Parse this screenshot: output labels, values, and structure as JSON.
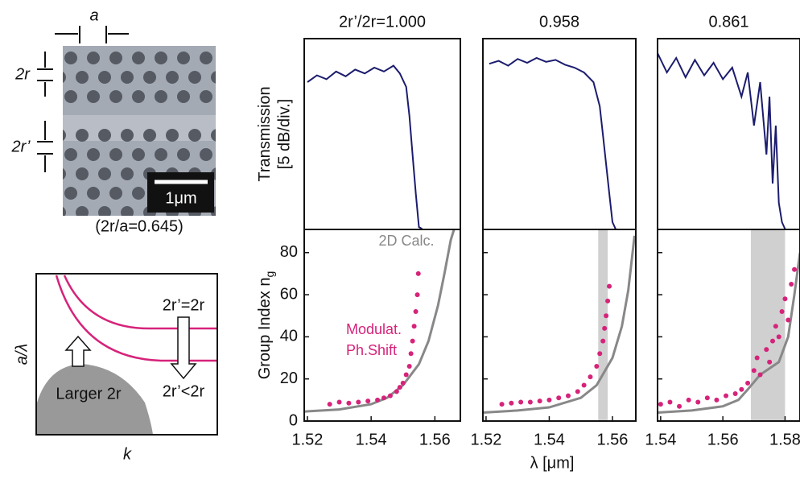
{
  "figure": {
    "sem": {
      "period_label": "a",
      "radius_label": "2r",
      "defect_radius_label": "2r’",
      "scale_bar": "1μm",
      "caption": "(2r/a=0.645)"
    },
    "band_diagram": {
      "ylabel": "a/λ",
      "xlabel": "k",
      "upper_curve_label": "2r’=2r",
      "lower_curve_label": "2r’<2r",
      "region_label": "Larger 2r"
    },
    "xlabel": "λ [μm]"
  },
  "chart_data": [
    {
      "type": "line",
      "title": "2r’/2r=1.000",
      "ylabel": "Transmission",
      "ylabel2": "[5 dB/div.]",
      "color": "#1c1c6e",
      "xlim": [
        1.519,
        1.568
      ],
      "ylim": [
        -19.75,
        0
      ],
      "x": [
        1.52,
        1.523,
        1.526,
        1.529,
        1.532,
        1.535,
        1.538,
        1.541,
        1.544,
        1.547,
        1.549,
        1.551,
        1.552,
        1.553,
        1.554,
        1.555,
        1.556
      ],
      "values": [
        -4.5,
        -3.8,
        -4.2,
        -3.4,
        -3.9,
        -3.2,
        -3.6,
        -3.0,
        -3.4,
        -2.8,
        -3.6,
        -5,
        -8,
        -12,
        -16,
        -19.5,
        -19.7
      ]
    },
    {
      "type": "line",
      "title": "0.958",
      "color": "#1c1c6e",
      "xlim": [
        1.519,
        1.5674
      ],
      "ylim": [
        -19.75,
        0
      ],
      "x": [
        1.521,
        1.524,
        1.527,
        1.53,
        1.533,
        1.536,
        1.539,
        1.542,
        1.545,
        1.548,
        1.551,
        1.554,
        1.556,
        1.557,
        1.558,
        1.559,
        1.56,
        1.561
      ],
      "values": [
        -2.6,
        -2.3,
        -2.8,
        -2.1,
        -2.5,
        -2.0,
        -2.4,
        -2.2,
        -2.7,
        -3.0,
        -3.5,
        -4.5,
        -7,
        -10,
        -13,
        -16,
        -19,
        -19.7
      ]
    },
    {
      "type": "line",
      "title": "0.861",
      "color": "#1c1c6e",
      "xlim": [
        1.539,
        1.5848
      ],
      "ylim": [
        -19.75,
        0
      ],
      "x": [
        1.539,
        1.542,
        1.545,
        1.548,
        1.551,
        1.554,
        1.557,
        1.56,
        1.563,
        1.566,
        1.568,
        1.57,
        1.572,
        1.574,
        1.575,
        1.576,
        1.577,
        1.578,
        1.579,
        1.58
      ],
      "values": [
        -1.5,
        -3.5,
        -2.0,
        -4.0,
        -2.2,
        -3.8,
        -2.5,
        -4.2,
        -3.0,
        -6,
        -3.5,
        -9,
        -4.5,
        -12,
        -6,
        -15,
        -9,
        -17,
        -19,
        -19.7
      ]
    },
    {
      "type": "scatter",
      "ylabel": "Group Index n",
      "ylabel_sub": "g",
      "annotations": [
        "2D Calc.",
        "Modulat.",
        "Ph.Shift"
      ],
      "xlim": [
        1.519,
        1.568
      ],
      "ylim": [
        0,
        91
      ],
      "yticks": [
        0,
        20,
        40,
        60,
        80
      ],
      "xticks": [
        1.52,
        1.54,
        1.56
      ],
      "series": [
        {
          "color": "#888888",
          "x": [
            1.519,
            1.53,
            1.54,
            1.545,
            1.55,
            1.555,
            1.558,
            1.561,
            1.563,
            1.565,
            1.566
          ],
          "values": [
            4.5,
            5.5,
            8,
            11,
            17,
            27,
            38,
            55,
            70,
            86,
            91
          ]
        },
        {
          "color": "#d6237a",
          "x": [
            1.527,
            1.53,
            1.533,
            1.536,
            1.539,
            1.542,
            1.544,
            1.546,
            1.548,
            1.549,
            1.55,
            1.551,
            1.552,
            1.5525,
            1.553,
            1.5535,
            1.554,
            1.5545,
            1.5548
          ],
          "values": [
            8,
            9,
            8.5,
            9,
            9.5,
            10,
            11,
            12,
            14,
            16,
            18,
            22,
            26,
            32,
            38,
            45,
            52,
            60,
            70
          ]
        }
      ]
    },
    {
      "type": "scatter",
      "xlim": [
        1.519,
        1.5674
      ],
      "ylim": [
        0,
        91
      ],
      "yticks": [
        0,
        20,
        40,
        60,
        80
      ],
      "xticks": [
        1.52,
        1.54,
        1.56
      ],
      "shaded_region": [
        1.5555,
        1.5585
      ],
      "series": [
        {
          "color": "#888888",
          "x": [
            1.519,
            1.53,
            1.54,
            1.55,
            1.555,
            1.56,
            1.563,
            1.565,
            1.567
          ],
          "values": [
            4,
            5,
            6.5,
            11,
            17,
            30,
            45,
            62,
            88
          ]
        },
        {
          "color": "#d6237a",
          "x": [
            1.525,
            1.528,
            1.531,
            1.534,
            1.537,
            1.54,
            1.543,
            1.546,
            1.549,
            1.551,
            1.553,
            1.555,
            1.556,
            1.557,
            1.5575,
            1.558,
            1.5585,
            1.559
          ],
          "values": [
            8,
            8.5,
            9,
            9,
            9.5,
            10,
            11,
            12,
            14,
            17,
            21,
            26,
            32,
            38,
            44,
            50,
            57,
            64
          ]
        }
      ]
    },
    {
      "type": "scatter",
      "xlim": [
        1.539,
        1.5848
      ],
      "ylim": [
        0,
        91
      ],
      "yticks": [
        0,
        20,
        40,
        60,
        80
      ],
      "xticks": [
        1.54,
        1.56,
        1.58
      ],
      "shaded_region": [
        1.569,
        1.58
      ],
      "series": [
        {
          "color": "#888888",
          "x": [
            1.539,
            1.55,
            1.56,
            1.565,
            1.568,
            1.572,
            1.578,
            1.581,
            1.583,
            1.5848
          ],
          "values": [
            4,
            5,
            7,
            10,
            15,
            22,
            28,
            40,
            60,
            80
          ]
        },
        {
          "color": "#d6237a",
          "x": [
            1.54,
            1.543,
            1.546,
            1.549,
            1.552,
            1.555,
            1.558,
            1.561,
            1.564,
            1.566,
            1.568,
            1.57,
            1.571,
            1.572,
            1.574,
            1.575,
            1.576,
            1.577,
            1.578,
            1.579,
            1.58,
            1.581,
            1.582,
            1.583
          ],
          "values": [
            8,
            9,
            7,
            10,
            9,
            11,
            10,
            12,
            13,
            15,
            18,
            24,
            30,
            22,
            34,
            28,
            38,
            45,
            40,
            52,
            58,
            48,
            65,
            72
          ]
        }
      ]
    }
  ]
}
